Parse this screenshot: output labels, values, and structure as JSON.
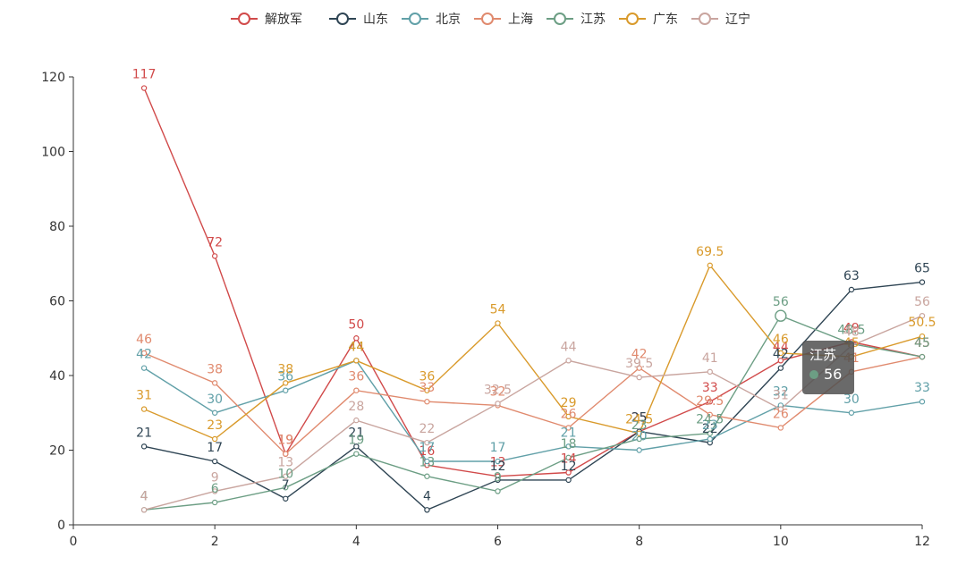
{
  "chart_data": {
    "type": "line",
    "title": "",
    "xlabel": "",
    "ylabel": "",
    "xlim": [
      0,
      12
    ],
    "ylim": [
      0,
      120
    ],
    "x_ticks": [
      0,
      2,
      4,
      6,
      8,
      10,
      12
    ],
    "y_ticks": [
      0,
      20,
      40,
      60,
      80,
      100,
      120
    ],
    "grid": false,
    "legend_position": "top-center",
    "series": [
      {
        "name": "解放军",
        "color": "#d14a4a",
        "points": [
          [
            1,
            117
          ],
          [
            2,
            72
          ],
          [
            3,
            19
          ],
          [
            4,
            50
          ],
          [
            5,
            16
          ],
          [
            6,
            13
          ],
          [
            7,
            14
          ],
          [
            8,
            25
          ],
          [
            9,
            33
          ],
          [
            10,
            44
          ],
          [
            11,
            49
          ],
          [
            12,
            45
          ]
        ]
      },
      {
        "name": "山东",
        "color": "#2f4554",
        "points": [
          [
            1,
            21
          ],
          [
            2,
            17
          ],
          [
            3,
            7
          ],
          [
            4,
            21
          ],
          [
            5,
            4
          ],
          [
            6,
            12
          ],
          [
            7,
            12
          ],
          [
            8,
            25
          ],
          [
            9,
            22
          ],
          [
            10,
            42
          ],
          [
            11,
            63
          ],
          [
            12,
            65
          ]
        ]
      },
      {
        "name": "北京",
        "color": "#61a0a8",
        "points": [
          [
            1,
            42
          ],
          [
            2,
            30
          ],
          [
            3,
            36
          ],
          [
            4,
            44
          ],
          [
            5,
            17
          ],
          [
            6,
            17
          ],
          [
            7,
            21
          ],
          [
            8,
            20
          ],
          [
            9,
            23
          ],
          [
            10,
            32
          ],
          [
            11,
            30
          ],
          [
            12,
            33
          ]
        ]
      },
      {
        "name": "上海",
        "color": "#e08a6e",
        "points": [
          [
            1,
            46
          ],
          [
            2,
            38
          ],
          [
            3,
            19
          ],
          [
            4,
            36
          ],
          [
            5,
            33
          ],
          [
            6,
            32
          ],
          [
            7,
            26
          ],
          [
            8,
            42
          ],
          [
            9,
            29.5
          ],
          [
            10,
            26
          ],
          [
            11,
            41
          ],
          [
            12,
            45
          ]
        ]
      },
      {
        "name": "江苏",
        "color": "#6c9e84",
        "points": [
          [
            1,
            4
          ],
          [
            2,
            6
          ],
          [
            3,
            10
          ],
          [
            4,
            19
          ],
          [
            5,
            13
          ],
          [
            6,
            9
          ],
          [
            7,
            18
          ],
          [
            8,
            23
          ],
          [
            9,
            24.5
          ],
          [
            10,
            56
          ],
          [
            11,
            48.5
          ],
          [
            12,
            45
          ]
        ]
      },
      {
        "name": "广东",
        "color": "#d99a2b",
        "points": [
          [
            1,
            31
          ],
          [
            2,
            23
          ],
          [
            3,
            38
          ],
          [
            4,
            44
          ],
          [
            5,
            36
          ],
          [
            6,
            54
          ],
          [
            7,
            29
          ],
          [
            8,
            24.5
          ],
          [
            9,
            69.5
          ],
          [
            10,
            46
          ],
          [
            11,
            45
          ],
          [
            12,
            50.5
          ]
        ]
      },
      {
        "name": "辽宁",
        "color": "#c9a59f",
        "points": [
          [
            1,
            4
          ],
          [
            2,
            9
          ],
          [
            3,
            13
          ],
          [
            4,
            28
          ],
          [
            5,
            22
          ],
          [
            6,
            32.5
          ],
          [
            7,
            44
          ],
          [
            8,
            39.5
          ],
          [
            9,
            41
          ],
          [
            10,
            31
          ],
          [
            11,
            48
          ],
          [
            12,
            56
          ]
        ]
      }
    ]
  },
  "tooltip": {
    "series_name": "江苏",
    "value": "56",
    "color": "#6c9e84",
    "x": 10
  }
}
